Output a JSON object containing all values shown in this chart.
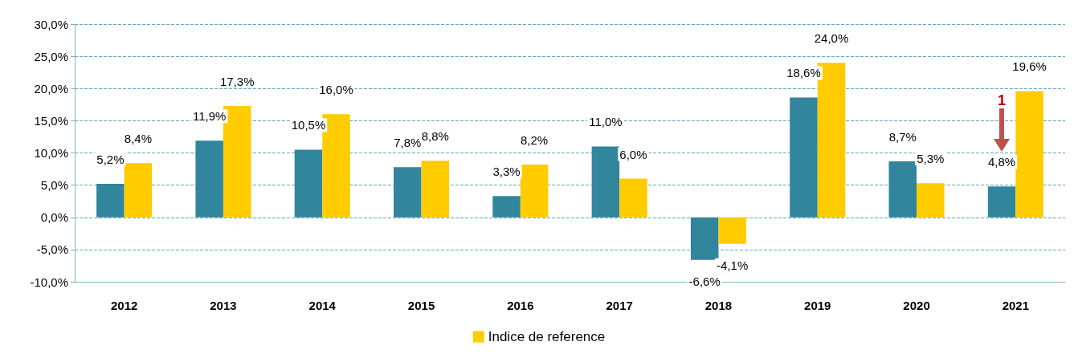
{
  "chart_data": {
    "type": "bar",
    "categories": [
      "2012",
      "2013",
      "2014",
      "2015",
      "2016",
      "2017",
      "2018",
      "2019",
      "2020",
      "2021"
    ],
    "series": [
      {
        "color": "#31859c",
        "values": [
          5.2,
          11.9,
          10.5,
          7.8,
          3.3,
          11.0,
          -6.6,
          18.6,
          8.7,
          4.8
        ],
        "value_labels": [
          "5,2%",
          "11,9%",
          "10,5%",
          "7,8%",
          "3,3%",
          "11,0%",
          "-6,6%",
          "18,6%",
          "8,7%",
          "4,8%"
        ]
      },
      {
        "name": "Indice de reference",
        "color": "#ffcc00",
        "values": [
          8.4,
          17.3,
          16.0,
          8.8,
          8.2,
          6.0,
          -4.1,
          24.0,
          5.3,
          19.6
        ],
        "value_labels": [
          "8,4%",
          "17,3%",
          "16,0%",
          "8,8%",
          "8,2%",
          "6,0%",
          "-4,1%",
          "24,0%",
          "5,3%",
          "19,6%"
        ]
      }
    ],
    "ylim": [
      -10,
      30
    ],
    "yticks": [
      {
        "value": -10,
        "label": "-10,0%"
      },
      {
        "value": -5,
        "label": "-5,0%"
      },
      {
        "value": 0,
        "label": "0,0%"
      },
      {
        "value": 5,
        "label": "5,0%"
      },
      {
        "value": 10,
        "label": "10,0%"
      },
      {
        "value": 15,
        "label": "15,0%"
      },
      {
        "value": 20,
        "label": "20,0%"
      },
      {
        "value": 25,
        "label": "25,0%"
      },
      {
        "value": 30,
        "label": "30,0%"
      }
    ],
    "grid": "y",
    "legend": "bottom",
    "annotations": [
      {
        "text": "1",
        "x": "2021",
        "y": 17
      }
    ]
  }
}
